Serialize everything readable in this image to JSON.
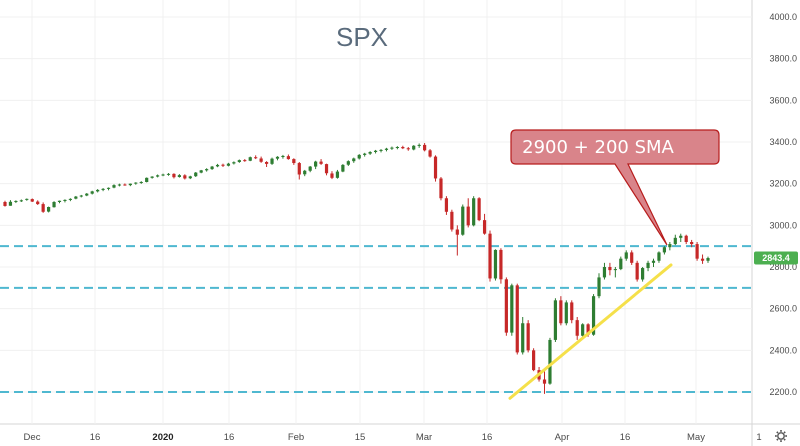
{
  "chart_data": {
    "type": "candlestick",
    "title": "SPX",
    "xlabel": "",
    "ylabel": "",
    "ylim": [
      2150,
      4060
    ],
    "y_ticks": [
      2200,
      2400,
      2600,
      2800,
      3000,
      3200,
      3400,
      3600,
      3800,
      4000
    ],
    "y_tick_labels": [
      "2200.0",
      "2400.0",
      "2600.0",
      "2800.0",
      "3000.0",
      "3200.0",
      "3400.0",
      "3600.0",
      "3800.0",
      "4000.0"
    ],
    "x_ticks": [
      {
        "label": "Dec",
        "bold": false
      },
      {
        "label": "16",
        "bold": false
      },
      {
        "label": "2020",
        "bold": true
      },
      {
        "label": "16",
        "bold": false
      },
      {
        "label": "Feb",
        "bold": false
      },
      {
        "label": "15",
        "bold": false
      },
      {
        "label": "Mar",
        "bold": false
      },
      {
        "label": "16",
        "bold": false
      },
      {
        "label": "Apr",
        "bold": false
      },
      {
        "label": "16",
        "bold": false
      },
      {
        "label": "May",
        "bold": false
      },
      {
        "label": "1",
        "bold": false
      }
    ],
    "last_price": 2843.4,
    "last_price_label": "2843.4",
    "horizontal_levels": [
      2900,
      2700,
      2200
    ],
    "trendline": {
      "from": [
        2191,
        2170
      ],
      "to": [
        2826,
        2810
      ]
    },
    "annotation": {
      "text": "2900 + 200 SMA"
    },
    "colors": {
      "up": "#2e7d32",
      "down": "#c62828",
      "level": "#4fb8d0",
      "trendline": "#f5e04a",
      "callout_fill": "#d9848a",
      "callout_stroke": "#b71c1c",
      "price_tag": "#4caf50"
    },
    "ohlc": [
      [
        3112,
        3118,
        3090,
        3093
      ],
      [
        3094,
        3121,
        3094,
        3113
      ],
      [
        3116,
        3120,
        3107,
        3117
      ],
      [
        3118,
        3124,
        3112,
        3120
      ],
      [
        3123,
        3129,
        3118,
        3127
      ],
      [
        3126,
        3129,
        3112,
        3114
      ],
      [
        3114,
        3120,
        3098,
        3102
      ],
      [
        3102,
        3110,
        3060,
        3065
      ],
      [
        3066,
        3090,
        3062,
        3088
      ],
      [
        3087,
        3116,
        3085,
        3112
      ],
      [
        3112,
        3119,
        3106,
        3118
      ],
      [
        3117,
        3125,
        3110,
        3122
      ],
      [
        3122,
        3130,
        3116,
        3127
      ],
      [
        3128,
        3141,
        3125,
        3138
      ],
      [
        3139,
        3146,
        3134,
        3143
      ],
      [
        3143,
        3155,
        3140,
        3152
      ],
      [
        3152,
        3166,
        3148,
        3163
      ],
      [
        3163,
        3174,
        3158,
        3170
      ],
      [
        3170,
        3179,
        3164,
        3175
      ],
      [
        3175,
        3182,
        3168,
        3180
      ],
      [
        3181,
        3197,
        3178,
        3193
      ],
      [
        3193,
        3200,
        3187,
        3196
      ],
      [
        3196,
        3201,
        3190,
        3192
      ],
      [
        3193,
        3201,
        3188,
        3200
      ],
      [
        3201,
        3207,
        3195,
        3205
      ],
      [
        3205,
        3212,
        3199,
        3208
      ],
      [
        3208,
        3230,
        3206,
        3228
      ],
      [
        3228,
        3236,
        3224,
        3234
      ],
      [
        3234,
        3244,
        3230,
        3240
      ],
      [
        3240,
        3248,
        3236,
        3244
      ],
      [
        3244,
        3251,
        3238,
        3247
      ],
      [
        3247,
        3250,
        3225,
        3231
      ],
      [
        3232,
        3246,
        3229,
        3241
      ],
      [
        3240,
        3245,
        3220,
        3225
      ],
      [
        3226,
        3238,
        3222,
        3235
      ],
      [
        3236,
        3256,
        3232,
        3253
      ],
      [
        3253,
        3266,
        3250,
        3264
      ],
      [
        3264,
        3274,
        3258,
        3270
      ],
      [
        3270,
        3285,
        3266,
        3282
      ],
      [
        3283,
        3295,
        3279,
        3290
      ],
      [
        3291,
        3296,
        3280,
        3286
      ],
      [
        3286,
        3300,
        3283,
        3296
      ],
      [
        3297,
        3307,
        3292,
        3303
      ],
      [
        3304,
        3316,
        3300,
        3313
      ],
      [
        3313,
        3318,
        3305,
        3310
      ],
      [
        3310,
        3330,
        3308,
        3327
      ],
      [
        3327,
        3336,
        3318,
        3322
      ],
      [
        3321,
        3330,
        3300,
        3305
      ],
      [
        3304,
        3308,
        3280,
        3295
      ],
      [
        3295,
        3325,
        3290,
        3320
      ],
      [
        3320,
        3332,
        3312,
        3329
      ],
      [
        3328,
        3338,
        3320,
        3333
      ],
      [
        3332,
        3340,
        3315,
        3318
      ],
      [
        3318,
        3322,
        3290,
        3299
      ],
      [
        3299,
        3304,
        3220,
        3244
      ],
      [
        3245,
        3266,
        3236,
        3262
      ],
      [
        3262,
        3285,
        3255,
        3282
      ],
      [
        3282,
        3310,
        3270,
        3306
      ],
      [
        3306,
        3318,
        3290,
        3295
      ],
      [
        3294,
        3296,
        3240,
        3250
      ],
      [
        3249,
        3260,
        3222,
        3228
      ],
      [
        3228,
        3266,
        3224,
        3258
      ],
      [
        3258,
        3294,
        3255,
        3290
      ],
      [
        3291,
        3312,
        3285,
        3308
      ],
      [
        3308,
        3325,
        3300,
        3321
      ],
      [
        3321,
        3342,
        3316,
        3338
      ],
      [
        3338,
        3348,
        3330,
        3344
      ],
      [
        3344,
        3356,
        3338,
        3352
      ],
      [
        3352,
        3362,
        3345,
        3358
      ],
      [
        3358,
        3366,
        3350,
        3362
      ],
      [
        3362,
        3372,
        3355,
        3368
      ],
      [
        3368,
        3378,
        3362,
        3373
      ],
      [
        3373,
        3380,
        3365,
        3376
      ],
      [
        3376,
        3382,
        3366,
        3370
      ],
      [
        3370,
        3376,
        3358,
        3365
      ],
      [
        3364,
        3385,
        3360,
        3382
      ],
      [
        3382,
        3393,
        3372,
        3386
      ],
      [
        3386,
        3395,
        3355,
        3360
      ],
      [
        3360,
        3366,
        3325,
        3330
      ],
      [
        3330,
        3336,
        3210,
        3225
      ],
      [
        3225,
        3232,
        3120,
        3130
      ],
      [
        3130,
        3140,
        3050,
        3065
      ],
      [
        3065,
        3075,
        2970,
        2980
      ],
      [
        2980,
        3000,
        2855,
        2955
      ],
      [
        2955,
        3100,
        2950,
        3090
      ],
      [
        3090,
        3130,
        2990,
        3000
      ],
      [
        3000,
        3140,
        2995,
        3130
      ],
      [
        3130,
        3135,
        3020,
        3025
      ],
      [
        3025,
        3055,
        2955,
        2960
      ],
      [
        2960,
        2975,
        2730,
        2745
      ],
      [
        2745,
        2885,
        2735,
        2882
      ],
      [
        2882,
        2890,
        2720,
        2741
      ],
      [
        2741,
        2750,
        2470,
        2485
      ],
      [
        2485,
        2720,
        2470,
        2712
      ],
      [
        2712,
        2720,
        2380,
        2390
      ],
      [
        2390,
        2560,
        2380,
        2530
      ],
      [
        2530,
        2545,
        2390,
        2400
      ],
      [
        2400,
        2410,
        2300,
        2305
      ],
      [
        2305,
        2320,
        2250,
        2260
      ],
      [
        2260,
        2300,
        2191,
        2240
      ],
      [
        2240,
        2460,
        2235,
        2450
      ],
      [
        2450,
        2650,
        2440,
        2640
      ],
      [
        2640,
        2660,
        2520,
        2530
      ],
      [
        2530,
        2640,
        2520,
        2630
      ],
      [
        2630,
        2640,
        2530,
        2545
      ],
      [
        2545,
        2560,
        2450,
        2470
      ],
      [
        2470,
        2530,
        2460,
        2525
      ],
      [
        2525,
        2530,
        2465,
        2475
      ],
      [
        2475,
        2670,
        2470,
        2660
      ],
      [
        2660,
        2770,
        2650,
        2750
      ],
      [
        2750,
        2820,
        2740,
        2800
      ],
      [
        2800,
        2820,
        2760,
        2785
      ],
      [
        2785,
        2800,
        2750,
        2790
      ],
      [
        2790,
        2850,
        2785,
        2840
      ],
      [
        2840,
        2880,
        2830,
        2870
      ],
      [
        2870,
        2880,
        2810,
        2820
      ],
      [
        2820,
        2830,
        2730,
        2740
      ],
      [
        2740,
        2800,
        2730,
        2795
      ],
      [
        2795,
        2830,
        2780,
        2820
      ],
      [
        2820,
        2840,
        2800,
        2830
      ],
      [
        2830,
        2875,
        2820,
        2870
      ],
      [
        2870,
        2900,
        2860,
        2895
      ],
      [
        2895,
        2920,
        2880,
        2910
      ],
      [
        2910,
        2955,
        2905,
        2940
      ],
      [
        2940,
        2960,
        2920,
        2950
      ],
      [
        2950,
        2955,
        2910,
        2920
      ],
      [
        2920,
        2930,
        2895,
        2910
      ],
      [
        2910,
        2920,
        2830,
        2840
      ],
      [
        2840,
        2860,
        2815,
        2830
      ],
      [
        2830,
        2850,
        2820,
        2843
      ]
    ]
  }
}
